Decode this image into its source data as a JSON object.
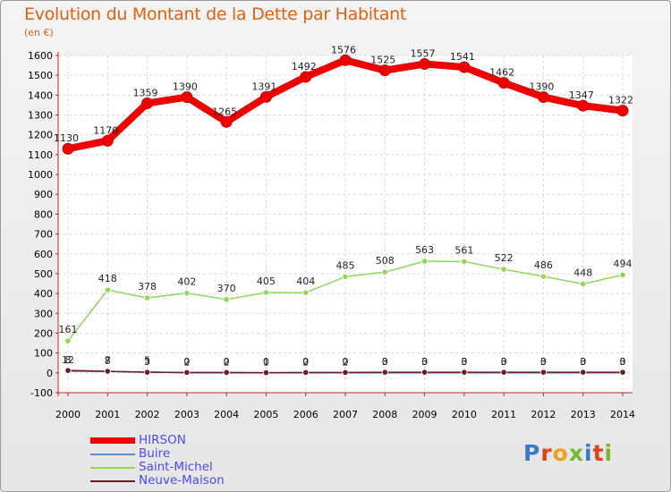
{
  "title": "Evolution du Montant de la Dette par Habitant",
  "unit": "(en €)",
  "logo_text": "Proxiti",
  "logo_colors": [
    "#3a78c8",
    "#e0401a",
    "#f0a020",
    "#7ab62e",
    "#3a78c8",
    "#e0401a",
    "#7ab62e"
  ],
  "chart_data": {
    "type": "line",
    "x": [
      "2000",
      "2001",
      "2002",
      "2003",
      "2004",
      "2005",
      "2006",
      "2007",
      "2008",
      "2009",
      "2010",
      "2011",
      "2012",
      "2013",
      "2014"
    ],
    "ylim": [
      -100,
      1600
    ],
    "yticks": [
      "-100",
      "0",
      "100",
      "200",
      "300",
      "400",
      "500",
      "600",
      "700",
      "800",
      "900",
      "1000",
      "1100",
      "1200",
      "1300",
      "1400",
      "1500",
      "1600"
    ],
    "grid": true,
    "legend_position": "bottom-left",
    "series": [
      {
        "name": "HIRSON",
        "color": "#ee0000",
        "values": [
          1130,
          1170,
          1359,
          1390,
          1265,
          1391,
          1492,
          1576,
          1525,
          1557,
          1541,
          1462,
          1390,
          1347,
          1322
        ]
      },
      {
        "name": "Buire",
        "color": "#5a8fc8",
        "values": [
          8,
          7,
          5,
          0,
          0,
          0,
          0,
          0,
          0,
          0,
          0,
          0,
          0,
          0,
          0
        ]
      },
      {
        "name": "Saint-Michel",
        "color": "#8fd85a",
        "values": [
          161,
          418,
          378,
          402,
          370,
          405,
          404,
          485,
          508,
          563,
          561,
          522,
          486,
          448,
          494
        ]
      },
      {
        "name": "Neuve-Maison",
        "color": "#6e1a22",
        "values": [
          12,
          8,
          3,
          2,
          2,
          1,
          2,
          2,
          3,
          3,
          3,
          3,
          3,
          3,
          3
        ]
      }
    ]
  }
}
